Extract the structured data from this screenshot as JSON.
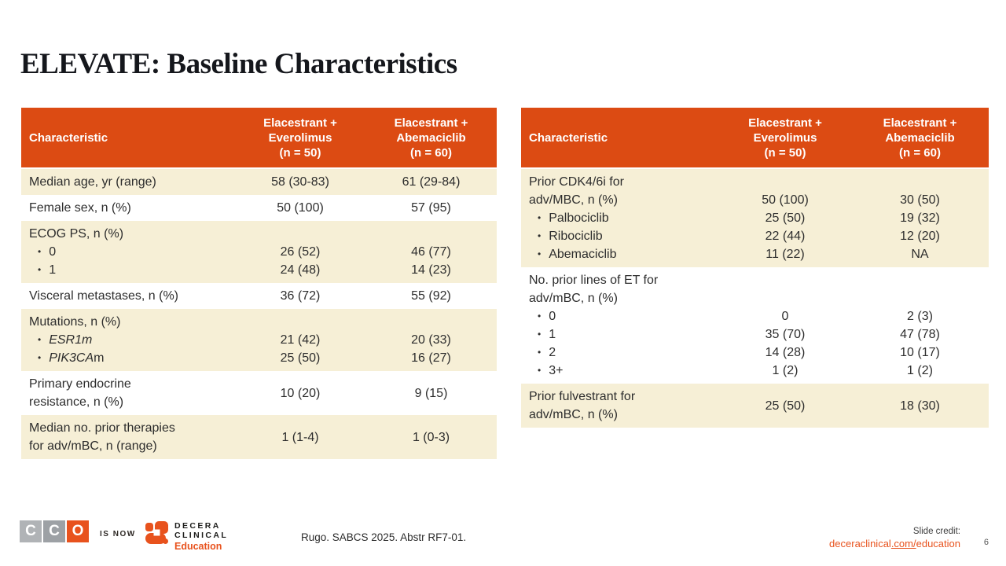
{
  "slide": {
    "title": "ELEVATE: Baseline Characteristics",
    "page_number": "6"
  },
  "colors": {
    "header_orange": "#DC4B13",
    "row_cream": "#F6EFD6",
    "accent_orange": "#E8521D"
  },
  "tables": [
    {
      "name": "left-baseline-table",
      "header": {
        "characteristic": "Characteristic",
        "col1_lines": [
          "Elacestrant +",
          "Everolimus",
          "(n = 50)"
        ],
        "col2_lines": [
          "Elacestrant +",
          "Abemaciclib",
          "(n = 60)"
        ]
      },
      "rows": [
        {
          "bg": "cream",
          "label": [
            {
              "text": "Median age, yr (range)"
            }
          ],
          "col1": [
            "58 (30-83)"
          ],
          "col2": [
            "61 (29-84)"
          ]
        },
        {
          "bg": "white",
          "label": [
            {
              "text": "Female sex, n (%)"
            }
          ],
          "col1": [
            "50 (100)"
          ],
          "col2": [
            "57 (95)"
          ]
        },
        {
          "bg": "cream",
          "label": [
            {
              "text": "ECOG PS, n (%)"
            },
            {
              "bullet": true,
              "text": "0"
            },
            {
              "bullet": true,
              "text": "1"
            }
          ],
          "col1": [
            "",
            "26 (52)",
            "24 (48)"
          ],
          "col2": [
            "",
            "46 (77)",
            "14 (23)"
          ]
        },
        {
          "bg": "white",
          "label": [
            {
              "text": "Visceral metastases, n (%)"
            }
          ],
          "col1": [
            "36 (72)"
          ],
          "col2": [
            "55 (92)"
          ]
        },
        {
          "bg": "cream",
          "label": [
            {
              "text": "Mutations, n (%)"
            },
            {
              "bullet": true,
              "segments": [
                {
                  "t": "ESR1m",
                  "i": true
                }
              ]
            },
            {
              "bullet": true,
              "segments": [
                {
                  "t": "PIK3CA",
                  "i": true
                },
                {
                  "t": "m",
                  "i": false
                }
              ]
            }
          ],
          "col1": [
            "",
            "21 (42)",
            "25 (50)"
          ],
          "col2": [
            "",
            "20 (33)",
            "16 (27)"
          ]
        },
        {
          "bg": "white",
          "label": [
            {
              "text": "Primary endocrine"
            },
            {
              "text": "resistance, n (%)"
            }
          ],
          "col1": [
            "10 (20)"
          ],
          "col2": [
            "9 (15)"
          ]
        },
        {
          "bg": "cream",
          "label": [
            {
              "text": "Median no. prior therapies"
            },
            {
              "text": "for adv/mBC, n (range)"
            }
          ],
          "col1": [
            "1 (1-4)"
          ],
          "col2": [
            "1 (0-3)"
          ]
        }
      ]
    },
    {
      "name": "right-baseline-table",
      "header": {
        "characteristic": "Characteristic",
        "col1_lines": [
          "Elacestrant +",
          "Everolimus",
          "(n = 50)"
        ],
        "col2_lines": [
          "Elacestrant +",
          "Abemaciclib",
          "(n = 60)"
        ]
      },
      "rows": [
        {
          "bg": "cream",
          "label": [
            {
              "text": "Prior CDK4/6i for"
            },
            {
              "text": "adv/MBC, n (%)"
            },
            {
              "bullet": true,
              "text": "Palbociclib"
            },
            {
              "bullet": true,
              "text": "Ribociclib"
            },
            {
              "bullet": true,
              "text": "Abemaciclib"
            }
          ],
          "col1": [
            "",
            "50 (100)",
            "25 (50)",
            "22 (44)",
            "11 (22)"
          ],
          "col2": [
            "",
            "30 (50)",
            "19 (32)",
            "12 (20)",
            "NA"
          ]
        },
        {
          "bg": "white",
          "label": [
            {
              "text": "No. prior lines of ET for"
            },
            {
              "text": "adv/mBC, n (%)"
            },
            {
              "bullet": true,
              "text": "0"
            },
            {
              "bullet": true,
              "text": "1"
            },
            {
              "bullet": true,
              "text": "2"
            },
            {
              "bullet": true,
              "text": "3+"
            }
          ],
          "col1": [
            "",
            "",
            "0",
            "35 (70)",
            "14 (28)",
            "1 (2)"
          ],
          "col2": [
            "",
            "",
            "2 (3)",
            "47 (78)",
            "10 (17)",
            "1 (2)"
          ]
        },
        {
          "bg": "cream",
          "label": [
            {
              "text": "Prior fulvestrant for"
            },
            {
              "text": "adv/mBC, n (%)"
            }
          ],
          "col1": [
            "25 (50)"
          ],
          "col2": [
            "18 (30)"
          ]
        }
      ]
    }
  ],
  "footer": {
    "cco_letters": [
      "C",
      "C",
      "O"
    ],
    "is_now": "IS NOW",
    "decera_line1": "DECERA",
    "decera_line2": "CLINICAL",
    "decera_education": "Education",
    "citation": "Rugo. SABCS 2025. Abstr RF7-01.",
    "slide_credit_label": "Slide credit:",
    "link_parts": [
      {
        "t": "deceraclinical"
      },
      {
        "t": ".com/",
        "u": true
      },
      {
        "t": "education"
      }
    ]
  }
}
